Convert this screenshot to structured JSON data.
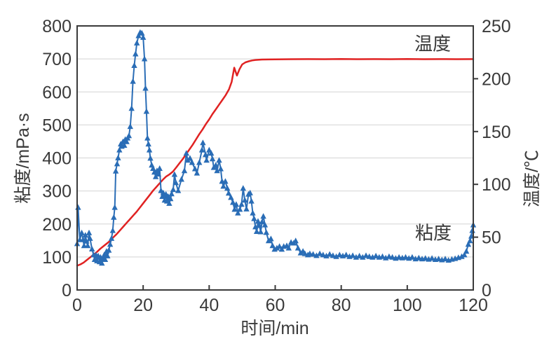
{
  "annotations": {
    "temperature": {
      "text": "温度"
    },
    "viscosity": {
      "text": "粘度"
    }
  },
  "chart_data": {
    "type": "line",
    "title": "",
    "xlabel": "时间/min",
    "ylabel_left": "粘度/mPa·s",
    "ylabel_right": "温度/℃",
    "xlim": [
      0,
      120
    ],
    "ylim_left": [
      0,
      800
    ],
    "ylim_right": [
      0,
      250
    ],
    "x_ticks": [
      0,
      20,
      40,
      60,
      80,
      100,
      120
    ],
    "y_left_ticks": [
      0,
      100,
      200,
      300,
      400,
      500,
      600,
      700,
      800
    ],
    "y_right_ticks": [
      0,
      50,
      100,
      150,
      200,
      250
    ],
    "grid": "horizontal-only",
    "legend_position": "inline-text-annotations",
    "colors": {
      "viscosity": "#2a6db6",
      "temperature": "#e02222",
      "grid": "#dcdcdc",
      "frame": "#3a3a3a",
      "text": "#3a3a3a"
    },
    "series": [
      {
        "name": "粘度",
        "axis": "left",
        "marker": "triangle-up",
        "points": [
          [
            0,
            140
          ],
          [
            0.3,
            250
          ],
          [
            0.8,
            152
          ],
          [
            1.4,
            173
          ],
          [
            1.8,
            152
          ],
          [
            2.1,
            134
          ],
          [
            2.5,
            166
          ],
          [
            2.8,
            148
          ],
          [
            3.2,
            134
          ],
          [
            3.6,
            173
          ],
          [
            3.9,
            156
          ],
          [
            4.5,
            124
          ],
          [
            5,
            106
          ],
          [
            5.3,
            92
          ],
          [
            5.7,
            106
          ],
          [
            6,
            88
          ],
          [
            6.4,
            103
          ],
          [
            6.8,
            85
          ],
          [
            7.1,
            99
          ],
          [
            7.5,
            81
          ],
          [
            7.8,
            96
          ],
          [
            8.2,
            106
          ],
          [
            8.5,
            92
          ],
          [
            8.9,
            117
          ],
          [
            9.2,
            103
          ],
          [
            9.6,
            120
          ],
          [
            10,
            138
          ],
          [
            10.4,
            156
          ],
          [
            10.8,
            180
          ],
          [
            11.1,
            220
          ],
          [
            11.4,
            250
          ],
          [
            11.7,
            360
          ],
          [
            12.1,
            382
          ],
          [
            12.4,
            400
          ],
          [
            12.8,
            424
          ],
          [
            13.2,
            442
          ],
          [
            13.5,
            435
          ],
          [
            13.9,
            449
          ],
          [
            14.3,
            438
          ],
          [
            14.6,
            456
          ],
          [
            15,
            449
          ],
          [
            15.3,
            460
          ],
          [
            15.7,
            467
          ],
          [
            16.1,
            495
          ],
          [
            16.5,
            550
          ],
          [
            16.9,
            632
          ],
          [
            17.3,
            680
          ],
          [
            17.7,
            715
          ],
          [
            18.1,
            748
          ],
          [
            18.6,
            770
          ],
          [
            19.1,
            780
          ],
          [
            19.6,
            778
          ],
          [
            20,
            765
          ],
          [
            20.4,
            700
          ],
          [
            20.7,
            611
          ],
          [
            21,
            541
          ],
          [
            21.3,
            460
          ],
          [
            21.6,
            442
          ],
          [
            21.9,
            424
          ],
          [
            22.2,
            399
          ],
          [
            22.6,
            378
          ],
          [
            23,
            368
          ],
          [
            23.4,
            357
          ],
          [
            23.8,
            343
          ],
          [
            24.2,
            361
          ],
          [
            24.6,
            351
          ],
          [
            25,
            368
          ],
          [
            25.4,
            301
          ],
          [
            25.8,
            283
          ],
          [
            26.1,
            294
          ],
          [
            26.5,
            272
          ],
          [
            26.9,
            290
          ],
          [
            27.2,
            269
          ],
          [
            27.6,
            283
          ],
          [
            27.9,
            262
          ],
          [
            28.3,
            276
          ],
          [
            28.6,
            291
          ],
          [
            29.1,
            304
          ],
          [
            29.5,
            350
          ],
          [
            29.9,
            325
          ],
          [
            30.6,
            301
          ],
          [
            31.6,
            335
          ],
          [
            32.5,
            361
          ],
          [
            33.1,
            414
          ],
          [
            33.5,
            393
          ],
          [
            34.2,
            399
          ],
          [
            34.8,
            386
          ],
          [
            35.7,
            367
          ],
          [
            36.3,
            354
          ],
          [
            37,
            386
          ],
          [
            37.8,
            424
          ],
          [
            38.1,
            446
          ],
          [
            38.9,
            410
          ],
          [
            39.2,
            393
          ],
          [
            40,
            424
          ],
          [
            40.6,
            414
          ],
          [
            41,
            397
          ],
          [
            41.4,
            371
          ],
          [
            42,
            378
          ],
          [
            42.4,
            361
          ],
          [
            43,
            393
          ],
          [
            43.5,
            367
          ],
          [
            43.9,
            329
          ],
          [
            44.3,
            314
          ],
          [
            44.9,
            329
          ],
          [
            45.5,
            308
          ],
          [
            45.9,
            293
          ],
          [
            46.6,
            280
          ],
          [
            47.2,
            265
          ],
          [
            47.7,
            244
          ],
          [
            48.2,
            259
          ],
          [
            48.7,
            233
          ],
          [
            49.3,
            244
          ],
          [
            49.8,
            259
          ],
          [
            50.3,
            308
          ],
          [
            50.8,
            272
          ],
          [
            51.3,
            245
          ],
          [
            51.9,
            290
          ],
          [
            52.4,
            294
          ],
          [
            52.8,
            269
          ],
          [
            53.2,
            233
          ],
          [
            53.6,
            216
          ],
          [
            54,
            191
          ],
          [
            54.4,
            177
          ],
          [
            54.8,
            208
          ],
          [
            55.2,
            195
          ],
          [
            55.6,
            176
          ],
          [
            56,
            206
          ],
          [
            56.4,
            223
          ],
          [
            56.9,
            197
          ],
          [
            57.3,
            174
          ],
          [
            58,
            149
          ],
          [
            58.7,
            155
          ],
          [
            59.2,
            134
          ],
          [
            59.8,
            123
          ],
          [
            60.5,
            127
          ],
          [
            61.3,
            132
          ],
          [
            62,
            123
          ],
          [
            62.6,
            132
          ],
          [
            63.5,
            134
          ],
          [
            64.1,
            127
          ],
          [
            64.8,
            144
          ],
          [
            65.6,
            142
          ],
          [
            66.2,
            149
          ],
          [
            66.9,
            127
          ],
          [
            67.7,
            112
          ],
          [
            68.4,
            117
          ],
          [
            69,
            110
          ],
          [
            69.9,
            106
          ],
          [
            70.5,
            110
          ],
          [
            71.5,
            108
          ],
          [
            72.5,
            104
          ],
          [
            73.5,
            110
          ],
          [
            74.5,
            106
          ],
          [
            75.5,
            103
          ],
          [
            76.5,
            108
          ],
          [
            77.5,
            104
          ],
          [
            78.5,
            101
          ],
          [
            79.5,
            106
          ],
          [
            80.5,
            103
          ],
          [
            81.5,
            106
          ],
          [
            82.5,
            101
          ],
          [
            83.5,
            104
          ],
          [
            84.5,
            99
          ],
          [
            85.5,
            103
          ],
          [
            86.5,
            99
          ],
          [
            87.5,
            104
          ],
          [
            88.5,
            101
          ],
          [
            89.5,
            99
          ],
          [
            90.5,
            103
          ],
          [
            91.5,
            99
          ],
          [
            92.5,
            101
          ],
          [
            93.5,
            97
          ],
          [
            94.5,
            101
          ],
          [
            95.5,
            99
          ],
          [
            96.5,
            96
          ],
          [
            97.5,
            99
          ],
          [
            98.5,
            97
          ],
          [
            99.5,
            99
          ],
          [
            100.5,
            96
          ],
          [
            101.5,
            99
          ],
          [
            102.5,
            94
          ],
          [
            103.5,
            97
          ],
          [
            104.5,
            94
          ],
          [
            105.5,
            96
          ],
          [
            106.5,
            93
          ],
          [
            107.5,
            96
          ],
          [
            108.5,
            92
          ],
          [
            109.5,
            94
          ],
          [
            110.5,
            91
          ],
          [
            111.5,
            94
          ],
          [
            112.5,
            90
          ],
          [
            113.5,
            93
          ],
          [
            114.5,
            95
          ],
          [
            115.5,
            98
          ],
          [
            116.5,
            101
          ],
          [
            117.3,
            106
          ],
          [
            117.9,
            117
          ],
          [
            118.5,
            138
          ],
          [
            119,
            149
          ],
          [
            119.4,
            163
          ],
          [
            119.7,
            180
          ],
          [
            120,
            197
          ]
        ]
      },
      {
        "name": "温度",
        "axis": "right",
        "marker": "none",
        "points": [
          [
            0,
            23
          ],
          [
            1,
            24.2
          ],
          [
            2,
            26
          ],
          [
            3,
            28.5
          ],
          [
            4,
            31
          ],
          [
            5,
            33.5
          ],
          [
            6,
            36
          ],
          [
            7,
            39
          ],
          [
            8,
            41.5
          ],
          [
            9,
            44
          ],
          [
            10,
            46.5
          ],
          [
            11,
            50
          ],
          [
            12,
            53
          ],
          [
            13,
            56.5
          ],
          [
            14,
            60
          ],
          [
            15,
            63.5
          ],
          [
            16,
            67
          ],
          [
            17,
            70.5
          ],
          [
            18,
            74
          ],
          [
            19,
            78
          ],
          [
            20,
            82
          ],
          [
            21,
            86
          ],
          [
            22,
            90
          ],
          [
            23,
            94
          ],
          [
            24,
            97.5
          ],
          [
            25,
            101
          ],
          [
            26,
            104.5
          ],
          [
            27,
            107.5
          ],
          [
            28,
            109.5
          ],
          [
            29,
            112
          ],
          [
            30,
            116
          ],
          [
            31,
            120
          ],
          [
            32,
            124
          ],
          [
            33,
            128.5
          ],
          [
            34,
            133
          ],
          [
            35,
            137.5
          ],
          [
            36,
            142.5
          ],
          [
            37,
            147.5
          ],
          [
            38,
            152
          ],
          [
            39,
            157
          ],
          [
            40,
            161.5
          ],
          [
            41,
            166.5
          ],
          [
            42,
            171
          ],
          [
            43,
            175.5
          ],
          [
            44,
            180
          ],
          [
            45,
            184.5
          ],
          [
            46,
            190
          ],
          [
            46.8,
            197
          ],
          [
            47.6,
            210.5
          ],
          [
            48.4,
            203
          ],
          [
            49.2,
            209
          ],
          [
            50,
            213.5
          ],
          [
            51,
            215.5
          ],
          [
            52,
            216.5
          ],
          [
            53,
            217.3
          ],
          [
            54,
            217.8
          ],
          [
            56,
            218.2
          ],
          [
            60,
            218.4
          ],
          [
            65,
            218.5
          ],
          [
            70,
            218.6
          ],
          [
            75,
            218.5
          ],
          [
            80,
            218.7
          ],
          [
            85,
            218.5
          ],
          [
            90,
            218.6
          ],
          [
            95,
            218.5
          ],
          [
            100,
            218.7
          ],
          [
            105,
            218.5
          ],
          [
            110,
            218.6
          ],
          [
            115,
            218.5
          ],
          [
            120,
            218.6
          ]
        ]
      }
    ]
  }
}
